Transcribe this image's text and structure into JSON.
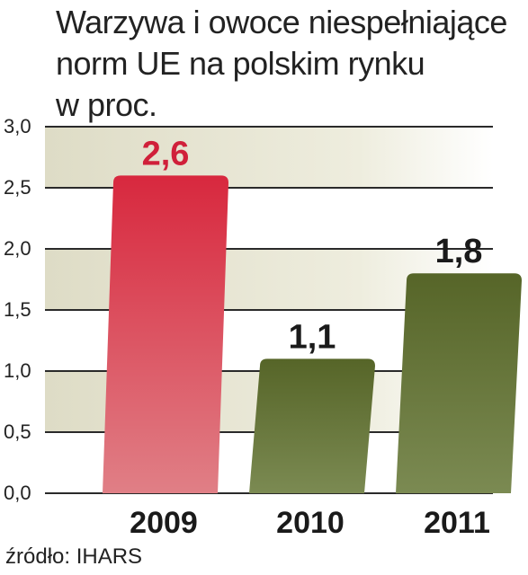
{
  "title_lines": [
    "Warzywa i owoce niespełniające",
    "norm UE na polskim rynku",
    "w proc."
  ],
  "source": "źródło: IHARS",
  "colors": {
    "highlight_bar": "#d8283e",
    "normal_bar": "#5c6a2e",
    "highlight_label": "#d0203a",
    "normal_label": "#1a1a1a"
  },
  "chart_data": {
    "type": "bar",
    "title": "Warzywa i owoce niespełniające norm UE na polskim rynku",
    "subtitle": "w proc.",
    "categories": [
      "2009",
      "2010",
      "2011"
    ],
    "values": [
      2.6,
      1.1,
      1.8
    ],
    "value_labels": [
      "2,6",
      "1,1",
      "1,8"
    ],
    "highlight_index": 0,
    "ylim": [
      0,
      3.0
    ],
    "yticks": [
      0.0,
      0.5,
      1.0,
      1.5,
      2.0,
      2.5,
      3.0
    ],
    "ytick_labels": [
      "0,0",
      "0,5",
      "1,0",
      "1,5",
      "2,0",
      "2,5",
      "3,0"
    ],
    "grid": true,
    "xlabel": "",
    "ylabel": ""
  }
}
